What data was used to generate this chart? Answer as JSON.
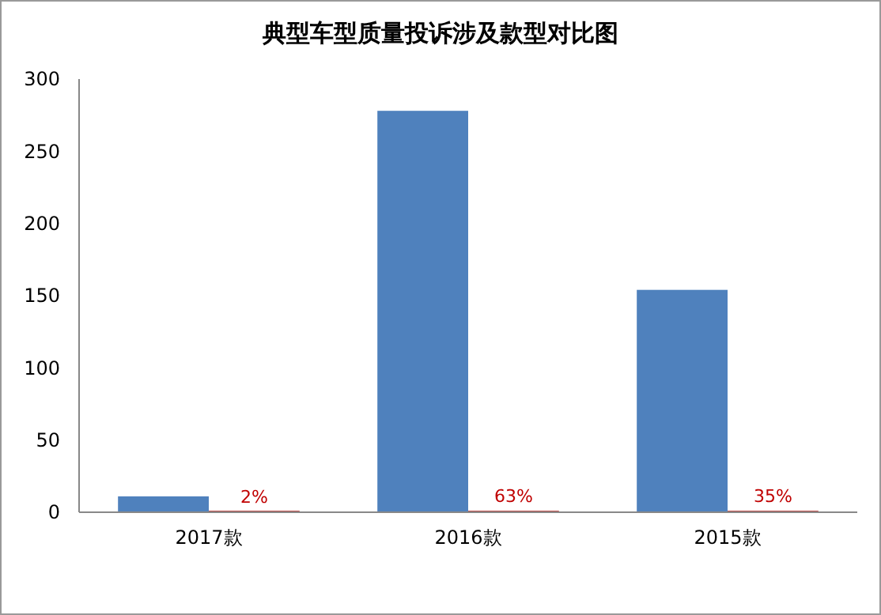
{
  "chart_data": {
    "type": "bar",
    "title": "典型车型质量投诉涉及款型对比图",
    "categories": [
      "2017款",
      "2016款",
      "2015款"
    ],
    "series": [
      {
        "color": "#4f81bd",
        "values": [
          11,
          278,
          154
        ]
      },
      {
        "color": "#c0504d",
        "values": [
          0.02,
          0.63,
          0.35
        ],
        "value_labels": [
          "2%",
          "63%",
          "35%"
        ]
      }
    ],
    "ylim": [
      0,
      300
    ],
    "yticks": [
      0,
      50,
      100,
      150,
      200,
      250,
      300
    ],
    "grid": false
  }
}
